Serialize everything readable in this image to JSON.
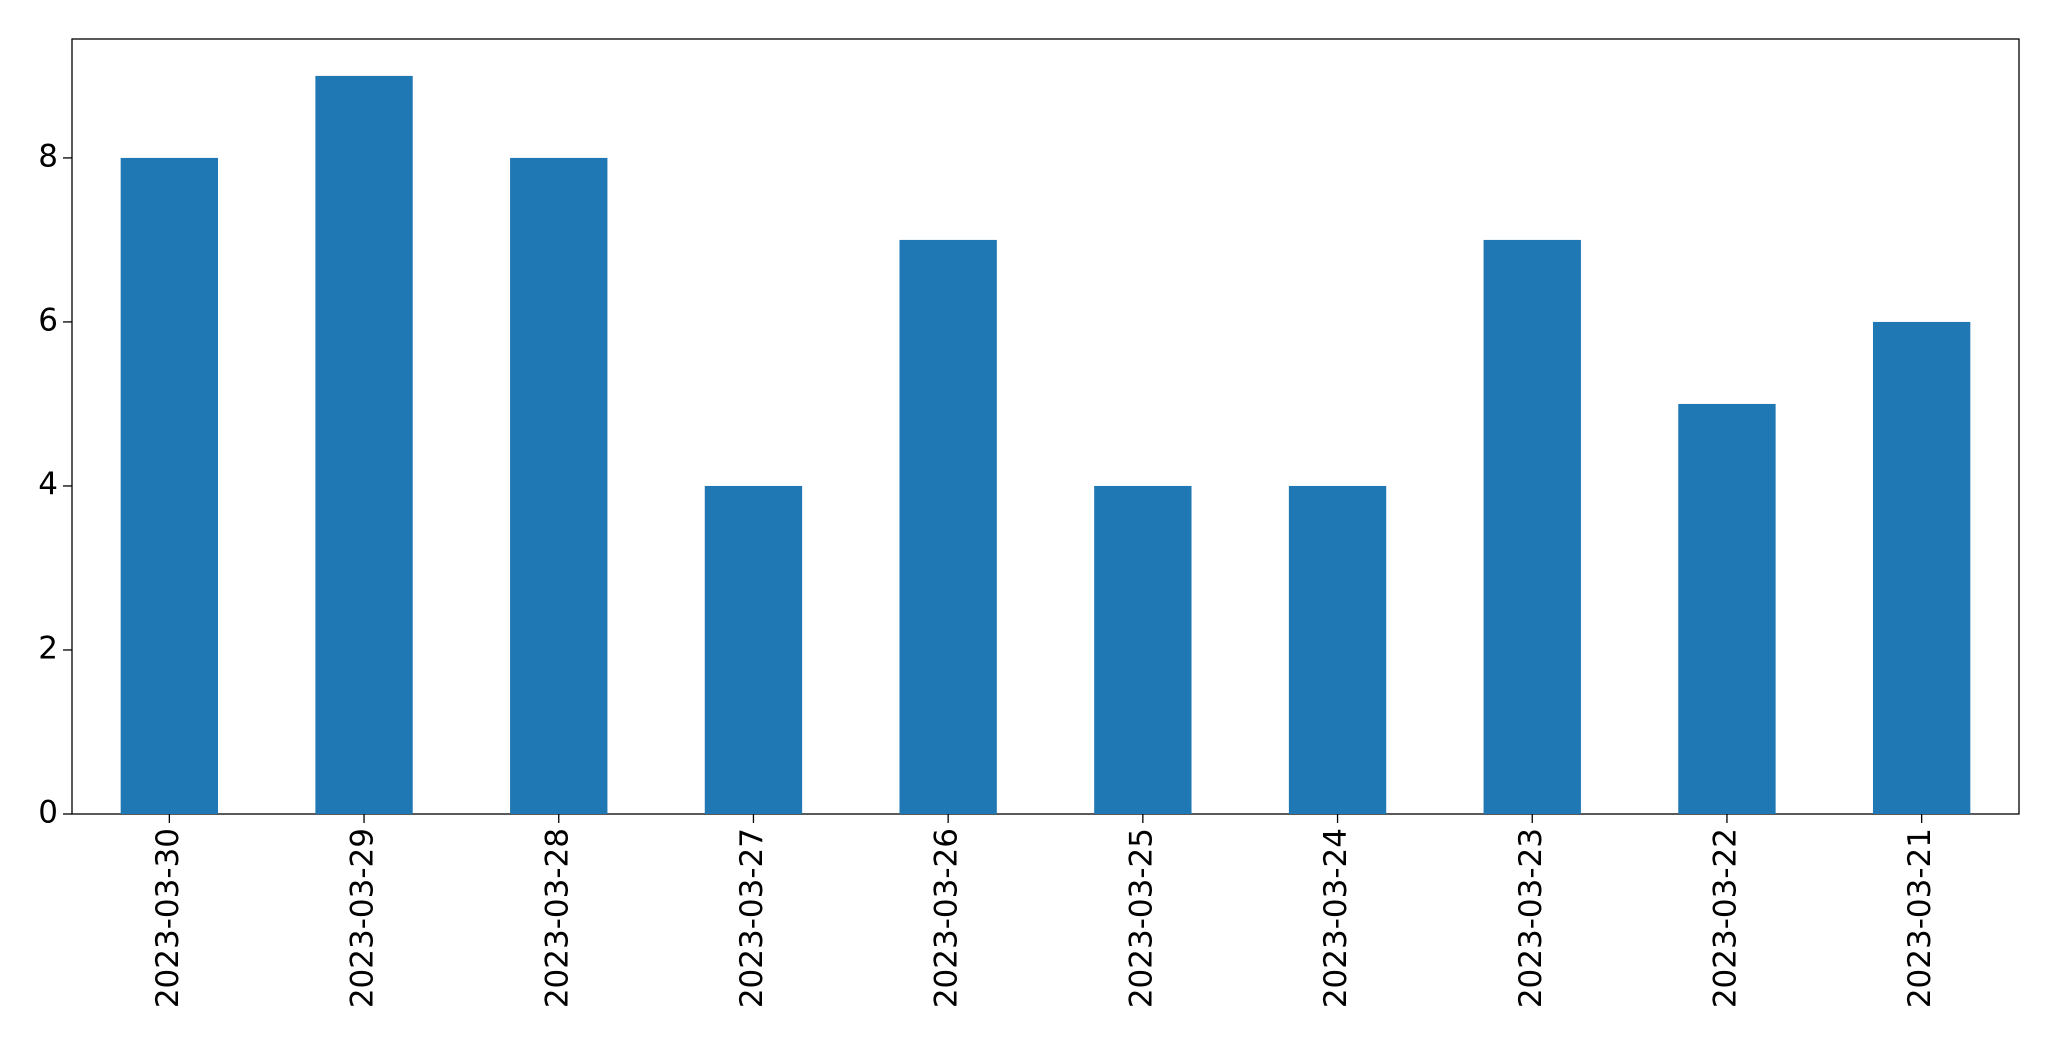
{
  "chart_data": {
    "type": "bar",
    "categories": [
      "2023-03-30",
      "2023-03-29",
      "2023-03-28",
      "2023-03-27",
      "2023-03-26",
      "2023-03-25",
      "2023-03-24",
      "2023-03-23",
      "2023-03-22",
      "2023-03-21"
    ],
    "values": [
      8,
      9,
      8,
      4,
      7,
      4,
      4,
      7,
      5,
      6
    ],
    "color": "#1f77b4",
    "ylim": [
      0,
      9.45
    ],
    "yticks": [
      0,
      2,
      4,
      6,
      8
    ],
    "grid": false
  }
}
